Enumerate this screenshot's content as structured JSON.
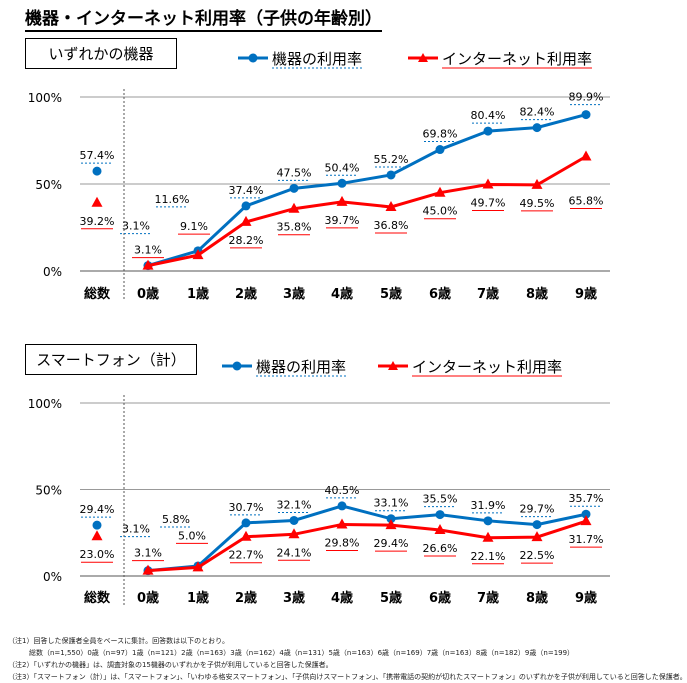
{
  "title": "機器・インターネット利用率（子供の年齢別）",
  "colors": {
    "device": "#0070c0",
    "internet": "#ff0000",
    "grid": "#999999"
  },
  "chart_data": [
    {
      "type": "line",
      "panel_label": "いずれかの機器",
      "categories": [
        "総数",
        "0歳",
        "1歳",
        "2歳",
        "3歳",
        "4歳",
        "5歳",
        "6歳",
        "7歳",
        "8歳",
        "9歳"
      ],
      "yticks": [
        "0%",
        "50%",
        "100%"
      ],
      "ylim": [
        0,
        100
      ],
      "grid": true,
      "legend": "top",
      "series": [
        {
          "name": "機器の利用率",
          "marker": "circle",
          "values": [
            57.4,
            3.1,
            11.6,
            37.4,
            47.5,
            50.4,
            55.2,
            69.8,
            80.4,
            82.4,
            89.9
          ],
          "labels": [
            "57.4%",
            "3.1%",
            "11.6%",
            "37.4%",
            "47.5%",
            "50.4%",
            "55.2%",
            "69.8%",
            "80.4%",
            "82.4%",
            "89.9%"
          ]
        },
        {
          "name": "インターネット利用率",
          "marker": "triangle",
          "values": [
            39.2,
            3.1,
            9.1,
            28.2,
            35.8,
            39.7,
            36.8,
            45.0,
            49.7,
            49.5,
            65.8
          ],
          "labels": [
            "39.2%",
            "3.1%",
            "9.1%",
            "28.2%",
            "35.8%",
            "39.7%",
            "36.8%",
            "45.0%",
            "49.7%",
            "49.5%",
            "65.8%"
          ]
        }
      ]
    },
    {
      "type": "line",
      "panel_label": "スマートフォン（計）",
      "categories": [
        "総数",
        "0歳",
        "1歳",
        "2歳",
        "3歳",
        "4歳",
        "5歳",
        "6歳",
        "7歳",
        "8歳",
        "9歳"
      ],
      "yticks": [
        "0%",
        "50%",
        "100%"
      ],
      "ylim": [
        0,
        100
      ],
      "grid": true,
      "legend": "top",
      "series": [
        {
          "name": "機器の利用率",
          "marker": "circle",
          "values": [
            29.4,
            3.1,
            5.8,
            30.7,
            32.1,
            40.5,
            33.1,
            35.5,
            31.9,
            29.7,
            35.7
          ],
          "labels": [
            "29.4%",
            "3.1%",
            "5.8%",
            "30.7%",
            "32.1%",
            "40.5%",
            "33.1%",
            "35.5%",
            "31.9%",
            "29.7%",
            "35.7%"
          ]
        },
        {
          "name": "インターネット利用率",
          "marker": "triangle",
          "values": [
            23.0,
            3.1,
            5.0,
            22.7,
            24.1,
            29.8,
            29.4,
            26.6,
            22.1,
            22.5,
            31.7
          ],
          "labels": [
            "23.0%",
            "3.1%",
            "5.0%",
            "22.7%",
            "24.1%",
            "29.8%",
            "29.4%",
            "26.6%",
            "22.1%",
            "22.5%",
            "31.7%"
          ]
        }
      ]
    }
  ],
  "notes": [
    "（注1）回答した保護者全員をベースに集計。回答数は以下のとおり。",
    "　　　総数（n=1,550）0歳（n=97）1歳（n=121）2歳（n=163）3歳（n=162）4歳（n=131）5歳（n=163）6歳（n=169）7歳（n=163）8歳（n=182）9歳（n=199）",
    "（注2）「いずれかの機器」は、調査対象の15機器のいずれかを子供が利用していると回答した保護者。",
    "（注3）「スマートフォン（計）」は、「スマートフォン」、「いわゆる格安スマートフォン」、「子供向けスマートフォン」、「携帯電話の契約が切れたスマートフォン」のいずれかを子供が利用していると回答した保護者。"
  ]
}
